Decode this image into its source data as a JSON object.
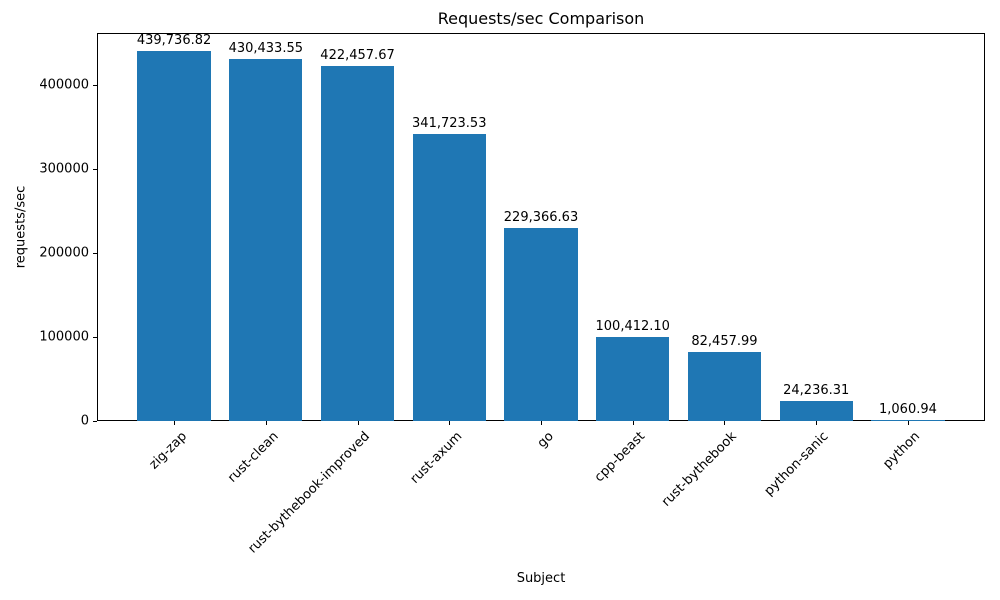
{
  "chart_data": {
    "type": "bar",
    "title": "Requests/sec Comparison",
    "xlabel": "Subject",
    "ylabel": "requests/sec",
    "categories": [
      "zig-zap",
      "rust-clean",
      "rust-bythebook-improved",
      "rust-axum",
      "go",
      "cpp-beast",
      "rust-bythebook",
      "python-sanic",
      "python"
    ],
    "values": [
      439736.82,
      430433.55,
      422457.67,
      341723.53,
      229366.63,
      100412.1,
      82457.99,
      24236.31,
      1060.94
    ],
    "value_labels": [
      "439,736.82",
      "430,433.55",
      "422,457.67",
      "341,723.53",
      "229,366.63",
      "100,412.10",
      "82,457.99",
      "24,236.31",
      "1,060.94"
    ],
    "ylim": [
      0,
      461724
    ],
    "yticks": [
      0,
      100000,
      200000,
      300000,
      400000
    ],
    "ytick_labels": [
      "0",
      "100000",
      "200000",
      "300000",
      "400000"
    ],
    "bar_color": "#1f77b4",
    "grid": false,
    "legend": null
  }
}
